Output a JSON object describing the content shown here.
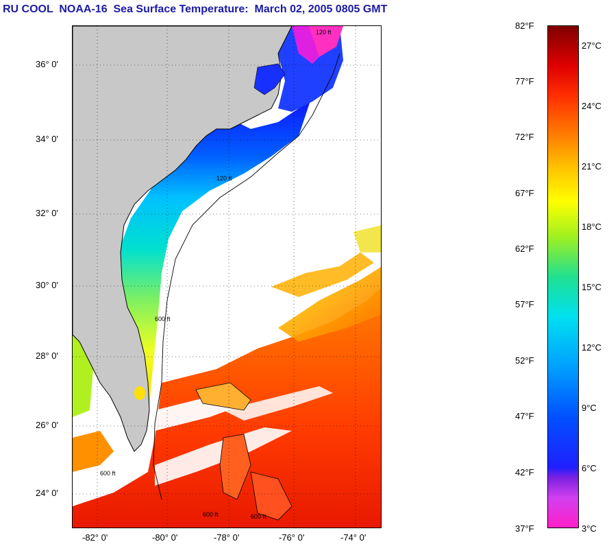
{
  "title": "RU COOL  NOAA-16  Sea Surface Temperature:  March 02, 2005 0805 GMT",
  "map": {
    "lat_labels": [
      "36° 0'",
      "34° 0'",
      "32° 0'",
      "30° 0'",
      "28° 0'",
      "26° 0'",
      "24° 0'"
    ],
    "lon_labels": [
      "-82° 0'",
      "-80° 0'",
      "-78° 0'",
      "-76° 0'",
      "-74° 0'"
    ],
    "contour_labels": [
      "120 ft",
      "120 ft",
      "600 ft",
      "600 ft",
      "600 ft",
      "600 ft"
    ],
    "colors": {
      "land": "#c8c8c8",
      "cloud": "#ffffff",
      "outline": "#000000"
    }
  },
  "colorbar": {
    "fahrenheit": [
      "82°F",
      "77°F",
      "72°F",
      "67°F",
      "62°F",
      "57°F",
      "52°F",
      "47°F",
      "42°F",
      "37°F"
    ],
    "celsius": [
      "27°C",
      "24°C",
      "21°C",
      "18°C",
      "15°C",
      "12°C",
      "9°C",
      "6°C",
      "3°C"
    ]
  }
}
